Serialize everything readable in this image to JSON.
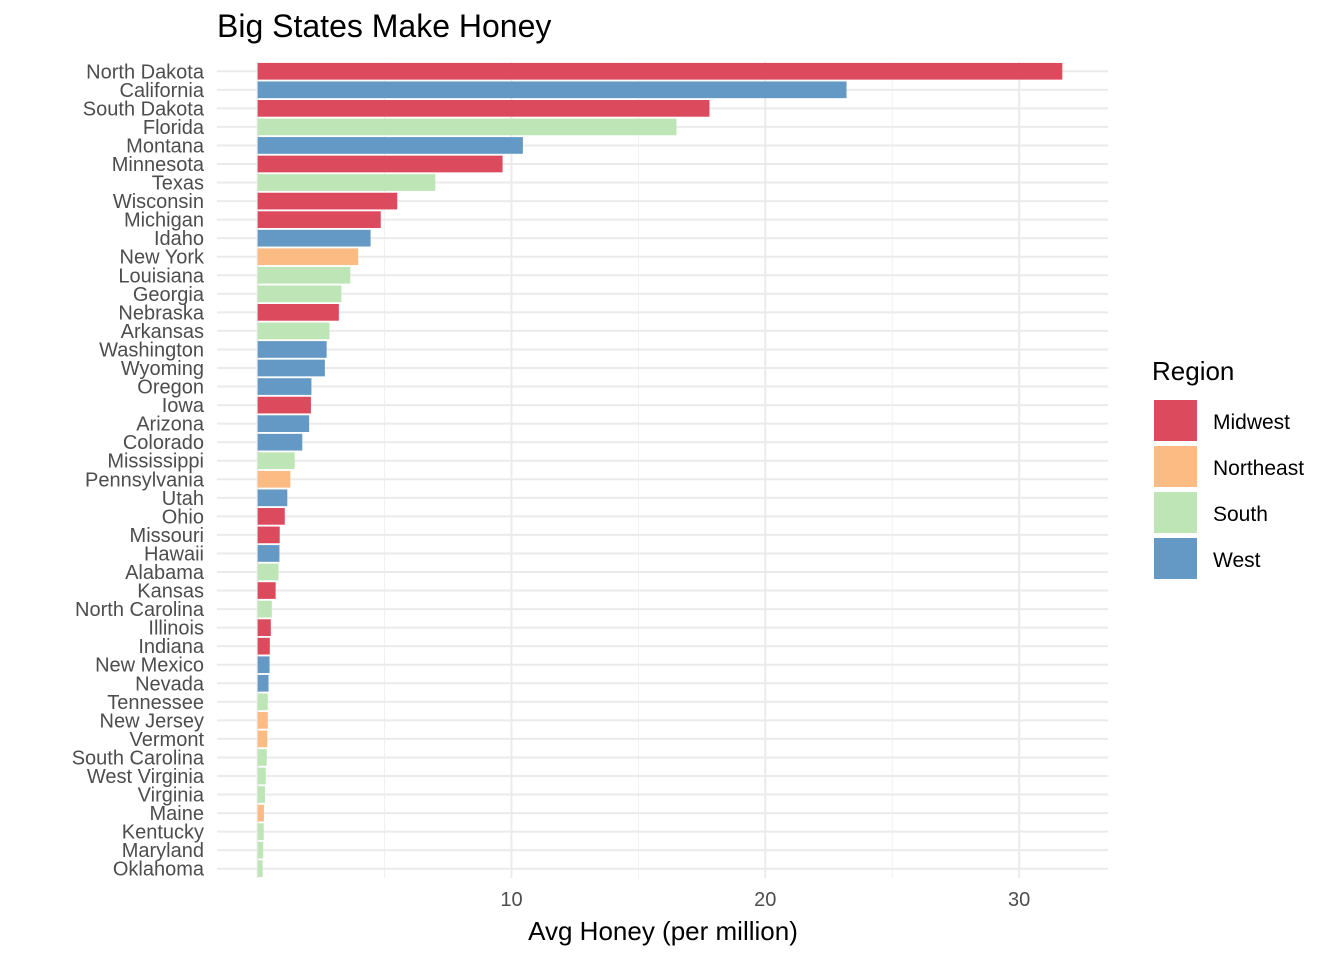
{
  "chart_data": {
    "type": "bar",
    "orientation": "horizontal",
    "title": "Big States Make Honey",
    "xlabel": "Avg Honey (per million)",
    "ylabel": "",
    "xlim": [
      -1.6,
      33.5
    ],
    "xticks": [
      10,
      20,
      30
    ],
    "grid": true,
    "legend": {
      "title": "Region",
      "placement": "right",
      "entries": [
        {
          "name": "Midwest",
          "color": "#db4a5d"
        },
        {
          "name": "Northeast",
          "color": "#fdbb84"
        },
        {
          "name": "South",
          "color": "#bde5b5"
        },
        {
          "name": "West",
          "color": "#6499c6"
        }
      ]
    },
    "categories": [
      "North Dakota",
      "California",
      "South Dakota",
      "Florida",
      "Montana",
      "Minnesota",
      "Texas",
      "Wisconsin",
      "Michigan",
      "Idaho",
      "New York",
      "Louisiana",
      "Georgia",
      "Nebraska",
      "Arkansas",
      "Washington",
      "Wyoming",
      "Oregon",
      "Iowa",
      "Arizona",
      "Colorado",
      "Mississippi",
      "Pennsylvania",
      "Utah",
      "Ohio",
      "Missouri",
      "Hawaii",
      "Alabama",
      "Kansas",
      "North Carolina",
      "Illinois",
      "Indiana",
      "New Mexico",
      "Nevada",
      "Tennessee",
      "New Jersey",
      "Vermont",
      "South Carolina",
      "West Virginia",
      "Virginia",
      "Maine",
      "Kentucky",
      "Maryland",
      "Oklahoma"
    ],
    "values": [
      31.7,
      23.2,
      17.8,
      16.5,
      10.45,
      9.65,
      7.0,
      5.5,
      4.85,
      4.45,
      3.96,
      3.65,
      3.3,
      3.2,
      2.83,
      2.72,
      2.65,
      2.12,
      2.1,
      2.03,
      1.76,
      1.46,
      1.29,
      1.17,
      1.07,
      0.87,
      0.86,
      0.82,
      0.71,
      0.56,
      0.52,
      0.48,
      0.47,
      0.43,
      0.4,
      0.4,
      0.38,
      0.36,
      0.32,
      0.29,
      0.25,
      0.24,
      0.22,
      0.2
    ],
    "regions": [
      "Midwest",
      "West",
      "Midwest",
      "South",
      "West",
      "Midwest",
      "South",
      "Midwest",
      "Midwest",
      "West",
      "Northeast",
      "South",
      "South",
      "Midwest",
      "South",
      "West",
      "West",
      "West",
      "Midwest",
      "West",
      "West",
      "South",
      "Northeast",
      "West",
      "Midwest",
      "Midwest",
      "West",
      "South",
      "Midwest",
      "South",
      "Midwest",
      "Midwest",
      "West",
      "West",
      "South",
      "Northeast",
      "Northeast",
      "South",
      "South",
      "South",
      "Northeast",
      "South",
      "South",
      "South"
    ]
  }
}
